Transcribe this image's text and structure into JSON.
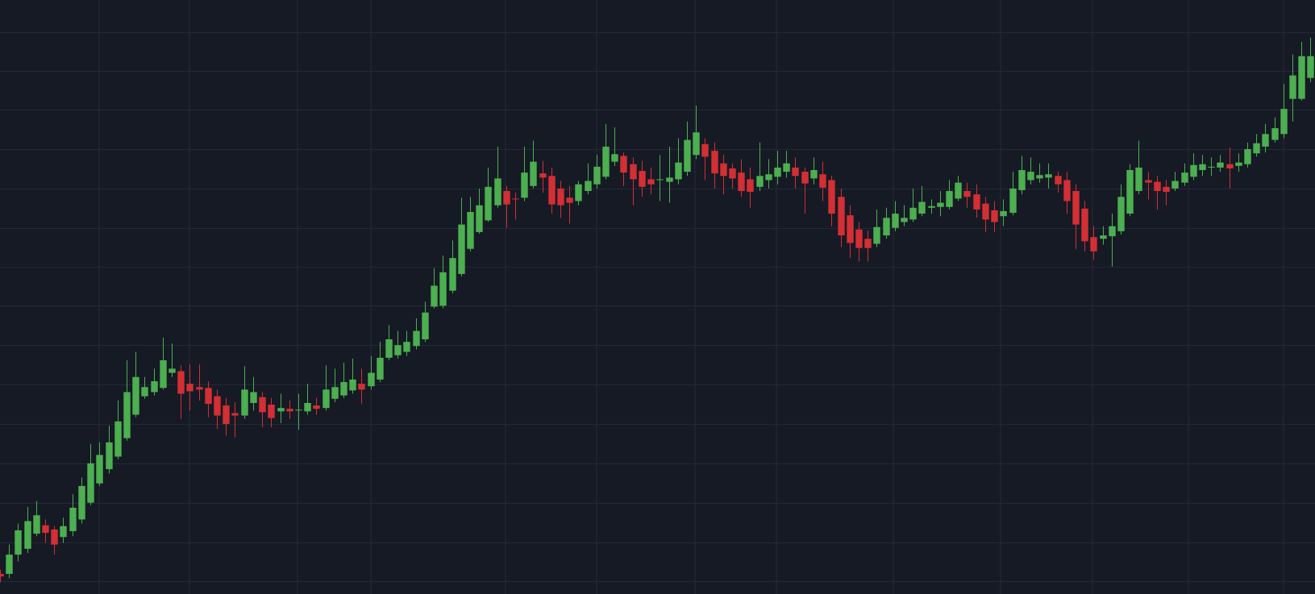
{
  "chart_data": {
    "type": "candlestick",
    "open": [
      24,
      24,
      47,
      54,
      72,
      82,
      77,
      68,
      75,
      89,
      109,
      132,
      149,
      164,
      186,
      214,
      236,
      241,
      246,
      264,
      266,
      251,
      247,
      246,
      236,
      225,
      216,
      213,
      228,
      235,
      226,
      218,
      221,
      219,
      218,
      225,
      222,
      233,
      237,
      243,
      251,
      248,
      256,
      282,
      285,
      289,
      296,
      304,
      343,
      344,
      362,
      382,
      412,
      432,
      446,
      464,
      481,
      472,
      473,
      487,
      502,
      499,
      484,
      473,
      469,
      481,
      489,
      498,
      516,
      523,
      513,
      505,
      495,
      494,
      492,
      495,
      504,
      524,
      537,
      529,
      514,
      508,
      503,
      495,
      486,
      494,
      498,
      504,
      509,
      504,
      496,
      501,
      494,
      474,
      452,
      435,
      424,
      418,
      428,
      437,
      444,
      447,
      454,
      461,
      462,
      462,
      472,
      481,
      477,
      466,
      458,
      451,
      455,
      482,
      494,
      496,
      497,
      499,
      494,
      481,
      460,
      426,
      424,
      427,
      433,
      454,
      481,
      494,
      492,
      486,
      484,
      491,
      498,
      506,
      509,
      509,
      513,
      511,
      513,
      526,
      534,
      542,
      549,
      591,
      591,
      616
    ],
    "high": [
      29,
      59,
      84,
      104,
      111,
      89,
      81,
      91,
      119,
      139,
      179,
      181,
      201,
      231,
      279,
      289,
      259,
      269,
      306,
      299,
      273,
      274,
      274,
      254,
      244,
      234,
      229,
      272,
      259,
      241,
      234,
      239,
      231,
      239,
      251,
      234,
      273,
      269,
      276,
      281,
      269,
      284,
      301,
      321,
      314,
      314,
      329,
      349,
      389,
      404,
      422,
      473,
      474,
      484,
      509,
      534,
      487,
      479,
      534,
      541,
      517,
      509,
      493,
      487,
      493,
      514,
      524,
      561,
      557,
      527,
      521,
      517,
      509,
      524,
      534,
      544,
      564,
      583,
      544,
      539,
      524,
      514,
      519,
      509,
      539,
      519,
      529,
      529,
      521,
      509,
      521,
      516,
      499,
      484,
      464,
      444,
      434,
      459,
      461,
      469,
      464,
      484,
      487,
      471,
      481,
      494,
      499,
      491,
      489,
      474,
      469,
      471,
      504,
      523,
      521,
      514,
      514,
      504,
      504,
      489,
      469,
      439,
      439,
      454,
      489,
      513,
      541,
      504,
      499,
      494,
      504,
      514,
      526,
      524,
      521,
      524,
      533,
      526,
      539,
      549,
      561,
      569,
      609,
      644,
      659,
      664
    ],
    "low": [
      14,
      19,
      39,
      49,
      69,
      61,
      47,
      61,
      69,
      84,
      106,
      129,
      144,
      161,
      183,
      211,
      233,
      237,
      244,
      259,
      209,
      219,
      231,
      211,
      197,
      189,
      187,
      209,
      219,
      199,
      199,
      204,
      209,
      196,
      214,
      214,
      219,
      229,
      234,
      239,
      227,
      244,
      253,
      279,
      281,
      284,
      292,
      301,
      341,
      341,
      359,
      379,
      409,
      430,
      444,
      461,
      437,
      447,
      469,
      484,
      479,
      454,
      449,
      442,
      464,
      477,
      484,
      495,
      511,
      487,
      464,
      474,
      477,
      469,
      467,
      489,
      499,
      519,
      494,
      484,
      477,
      484,
      474,
      461,
      481,
      484,
      489,
      497,
      484,
      454,
      489,
      469,
      439,
      414,
      401,
      397,
      397,
      414,
      424,
      433,
      439,
      444,
      451,
      454,
      451,
      459,
      469,
      461,
      449,
      432,
      432,
      439,
      452,
      477,
      489,
      491,
      484,
      479,
      454,
      412,
      409,
      399,
      417,
      391,
      429,
      451,
      477,
      471,
      459,
      464,
      481,
      487,
      494,
      499,
      499,
      504,
      484,
      504,
      509,
      522,
      527,
      539,
      544,
      564,
      589,
      611
    ],
    "close": [
      21,
      47,
      76,
      87,
      94,
      73,
      59,
      81,
      103,
      129,
      156,
      166,
      181,
      206,
      241,
      259,
      247,
      254,
      279,
      269,
      239,
      242,
      244,
      227,
      213,
      203,
      213,
      244,
      241,
      217,
      210,
      222,
      218,
      220,
      228,
      221,
      244,
      247,
      253,
      256,
      244,
      264,
      282,
      304,
      297,
      301,
      314,
      336,
      368,
      384,
      401,
      441,
      456,
      464,
      486,
      496,
      465,
      471,
      503,
      516,
      497,
      465,
      464,
      467,
      489,
      493,
      510,
      534,
      525,
      503,
      495,
      486,
      489,
      495,
      497,
      515,
      542,
      551,
      522,
      502,
      499,
      496,
      481,
      480,
      499,
      501,
      509,
      514,
      499,
      490,
      506,
      485,
      454,
      428,
      419,
      413,
      413,
      438,
      449,
      454,
      449,
      461,
      468,
      463,
      467,
      481,
      491,
      474,
      459,
      447,
      444,
      457,
      484,
      506,
      504,
      500,
      501,
      489,
      469,
      441,
      421,
      409,
      428,
      439,
      474,
      506,
      509,
      491,
      481,
      480,
      493,
      503,
      512,
      513,
      510,
      515,
      508,
      515,
      531,
      538,
      549,
      556,
      579,
      619,
      642,
      642
    ],
    "up_color": "#4caf50",
    "down_color": "#d32f34",
    "ylim": [
      0,
      709
    ],
    "yticks": [
      15,
      62,
      109,
      156,
      203,
      250,
      297,
      344,
      391,
      437,
      484,
      531,
      578,
      624,
      671
    ],
    "grid": true
  }
}
